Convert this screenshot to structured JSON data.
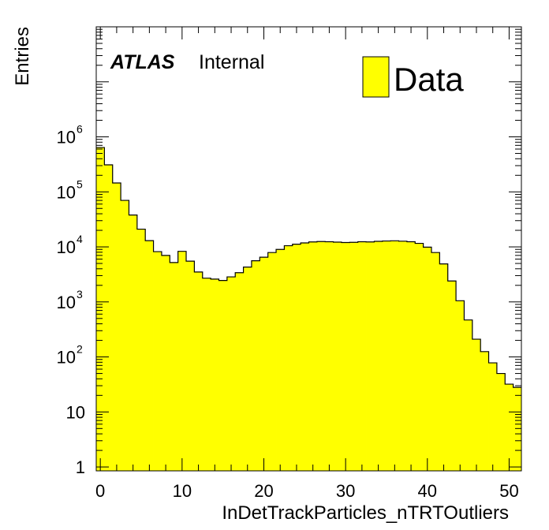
{
  "chart_data": {
    "type": "bar",
    "style": "step-histogram",
    "x_edges_start": -0.5,
    "bin_width": 1,
    "values": [
      640000,
      310000,
      145000,
      70000,
      38000,
      21000,
      13000,
      8200,
      7000,
      5200,
      8300,
      5500,
      3500,
      2700,
      2600,
      2450,
      2850,
      3400,
      4300,
      5600,
      6500,
      7900,
      9000,
      10500,
      11200,
      11800,
      12300,
      12500,
      12400,
      12200,
      12000,
      12100,
      12400,
      12300,
      12600,
      12800,
      12900,
      12700,
      12400,
      11600,
      9900,
      7900,
      4900,
      2400,
      1050,
      470,
      210,
      125,
      78,
      50,
      32,
      28
    ],
    "xlim": [
      -0.5,
      51.5
    ],
    "ylim": [
      0.85,
      100000000
    ],
    "yscale": "log",
    "x_ticks": [
      "0",
      "10",
      "20",
      "30",
      "40",
      "50"
    ],
    "y_ticks": [
      {
        "value": 1,
        "base": "1",
        "exp": ""
      },
      {
        "value": 10,
        "base": "10",
        "exp": ""
      },
      {
        "value": 100,
        "base": "10",
        "exp": "2"
      },
      {
        "value": 1000,
        "base": "10",
        "exp": "3"
      },
      {
        "value": 10000,
        "base": "10",
        "exp": "4"
      },
      {
        "value": 100000,
        "base": "10",
        "exp": "5"
      },
      {
        "value": 1000000,
        "base": "10",
        "exp": "6"
      }
    ],
    "xlabel": "InDetTrackParticles_nTRTOutliers",
    "ylabel": "Entries",
    "fill_color": "#ffff00",
    "line_color": "#000000",
    "legend": {
      "placement": "top-right",
      "entries": [
        {
          "name": "Data",
          "color": "#ffff00"
        }
      ]
    },
    "annotation": {
      "bold": "ATLAS",
      "normal": "Internal"
    },
    "grid": false
  }
}
